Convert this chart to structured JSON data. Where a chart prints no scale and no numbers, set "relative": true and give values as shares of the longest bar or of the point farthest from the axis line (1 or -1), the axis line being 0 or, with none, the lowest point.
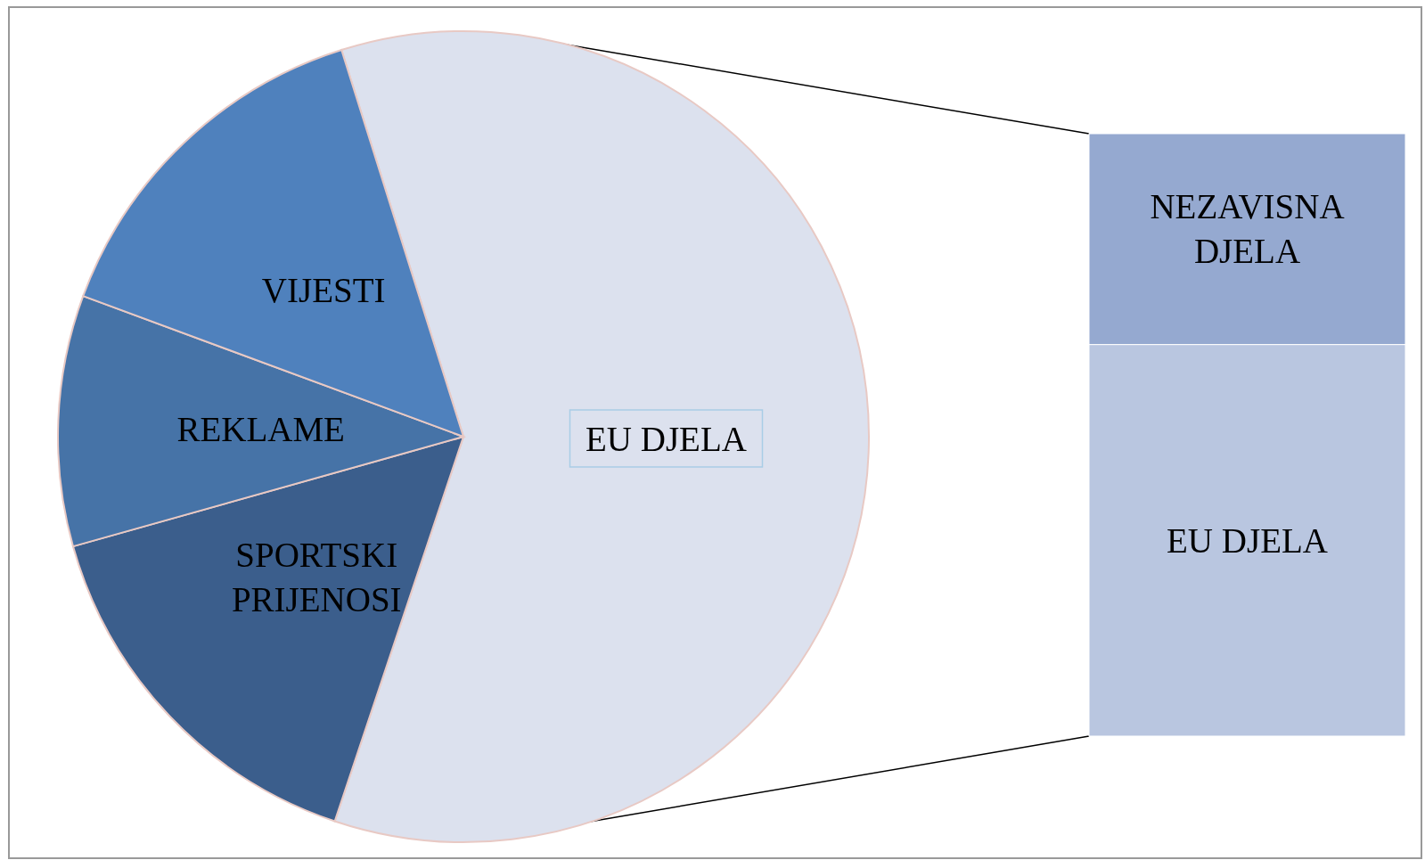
{
  "chart_data": [
    {
      "type": "pie",
      "categories": [
        "EU DJELA",
        "SPORTSKI PRIJENOSI",
        "REKLAME",
        "VIJESTI"
      ],
      "values": [
        60,
        15.5,
        10,
        14.5
      ],
      "colors": [
        "#dce1ee",
        "#3b5e8c",
        "#4673a7",
        "#4f81bd"
      ]
    },
    {
      "type": "bar",
      "stacked": true,
      "relative": true,
      "categories": [
        null
      ],
      "series": [
        {
          "name": "EU DJELA",
          "color": "#b9c6e0",
          "values": [
            0.65
          ]
        },
        {
          "name": "NEZAVISNA DJELA",
          "color": "#95a9d0",
          "values": [
            0.35
          ]
        }
      ]
    }
  ]
}
